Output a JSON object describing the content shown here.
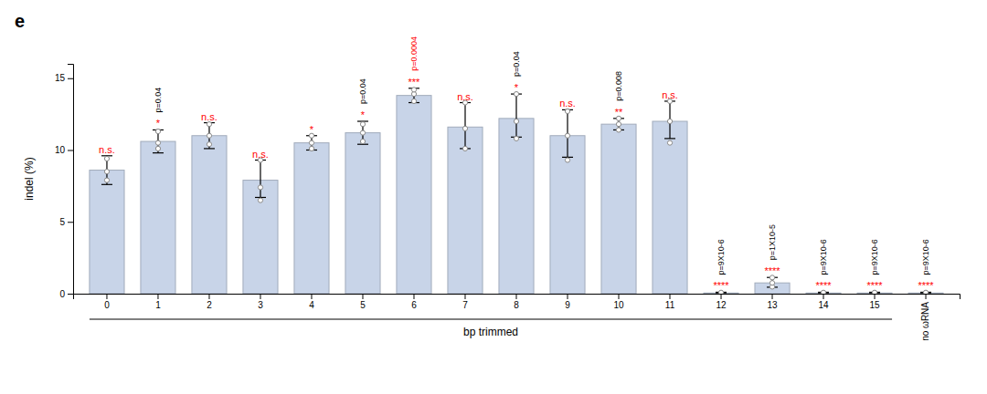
{
  "chart_data": {
    "type": "bar",
    "title": "e",
    "categories": [
      "0",
      "1",
      "2",
      "3",
      "4",
      "5",
      "6",
      "7",
      "8",
      "9",
      "10",
      "11",
      "12",
      "13",
      "14",
      "15",
      "no ωRNA"
    ],
    "values": [
      8.6,
      10.6,
      11.0,
      7.9,
      10.5,
      11.2,
      13.8,
      11.6,
      12.2,
      11.0,
      11.8,
      12.0,
      0.05,
      0.75,
      0.05,
      0.05,
      0.05
    ],
    "error_plus": [
      1.0,
      0.8,
      0.9,
      1.4,
      0.5,
      0.8,
      0.5,
      1.7,
      1.7,
      1.8,
      0.4,
      1.4,
      0.05,
      0.38,
      0.05,
      0.05,
      0.05
    ],
    "error_minus": [
      1.0,
      0.8,
      0.9,
      1.2,
      0.5,
      0.8,
      0.5,
      1.5,
      1.3,
      1.5,
      0.4,
      1.2,
      0.05,
      0.3,
      0.05,
      0.05,
      0.05
    ],
    "points": [
      [
        7.9,
        8.5,
        9.4
      ],
      [
        10.1,
        10.5,
        11.3
      ],
      [
        10.4,
        11.0,
        11.8
      ],
      [
        6.5,
        7.4,
        9.3
      ],
      [
        10.1,
        10.5,
        11.0
      ],
      [
        10.6,
        11.2,
        11.8
      ],
      [
        13.4,
        13.9,
        14.2
      ],
      [
        10.1,
        11.5,
        13.3
      ],
      [
        10.8,
        12.0,
        13.9
      ],
      [
        9.3,
        11.0,
        12.7
      ],
      [
        11.4,
        11.8,
        12.2
      ],
      [
        10.5,
        12.0,
        13.4
      ],
      [
        0.02,
        0.05,
        0.08
      ],
      [
        0.48,
        0.75,
        1.12
      ],
      [
        0.02,
        0.05,
        0.08
      ],
      [
        0.02,
        0.05,
        0.08
      ],
      [
        0.02,
        0.05,
        0.08
      ]
    ],
    "color": "#c8d4e8",
    "ylabel": "indel (%)",
    "xlabel": "bp trimmed",
    "ylim": [
      0,
      16
    ],
    "yticks": [
      0,
      5,
      10,
      15
    ],
    "grid": false,
    "significance": [
      {
        "category": "0",
        "text": "n.s.",
        "color": "red"
      },
      {
        "category": "1",
        "text": "*",
        "color": "red"
      },
      {
        "category": "2",
        "text": "n.s.",
        "color": "red"
      },
      {
        "category": "3",
        "text": "n.s.",
        "color": "red"
      },
      {
        "category": "4",
        "text": "*",
        "color": "red"
      },
      {
        "category": "5",
        "text": "*",
        "color": "red"
      },
      {
        "category": "6",
        "text": "***",
        "color": "red"
      },
      {
        "category": "7",
        "text": "n.s.",
        "color": "red"
      },
      {
        "category": "8",
        "text": "*",
        "color": "red"
      },
      {
        "category": "9",
        "text": "n.s.",
        "color": "red"
      },
      {
        "category": "10",
        "text": "**",
        "color": "red"
      },
      {
        "category": "11",
        "text": "n.s.",
        "color": "red"
      },
      {
        "category": "12",
        "text": "****",
        "color": "red"
      },
      {
        "category": "13",
        "text": "****",
        "color": "red"
      },
      {
        "category": "14",
        "text": "****",
        "color": "red"
      },
      {
        "category": "15",
        "text": "****",
        "color": "red"
      },
      {
        "category": "no ωRNA",
        "text": "****",
        "color": "red"
      }
    ],
    "p_values": [
      {
        "category": "1",
        "text": "p=0.04",
        "color": "black"
      },
      {
        "category": "5",
        "text": "p=0.04",
        "color": "black"
      },
      {
        "category": "6",
        "text": "p=0.0004",
        "color": "red"
      },
      {
        "category": "8",
        "text": "p=0.04",
        "color": "black"
      },
      {
        "category": "10",
        "text": "p=0.008",
        "color": "black"
      },
      {
        "category": "12",
        "text": "p=9X10-6",
        "color": "black"
      },
      {
        "category": "13",
        "text": "p=1X10-5",
        "color": "black"
      },
      {
        "category": "14",
        "text": "p=9X10-6",
        "color": "black"
      },
      {
        "category": "15",
        "text": "p=9X10-6",
        "color": "black"
      },
      {
        "category": "no ωRNA",
        "text": "p=9X10-6",
        "color": "black"
      }
    ]
  }
}
